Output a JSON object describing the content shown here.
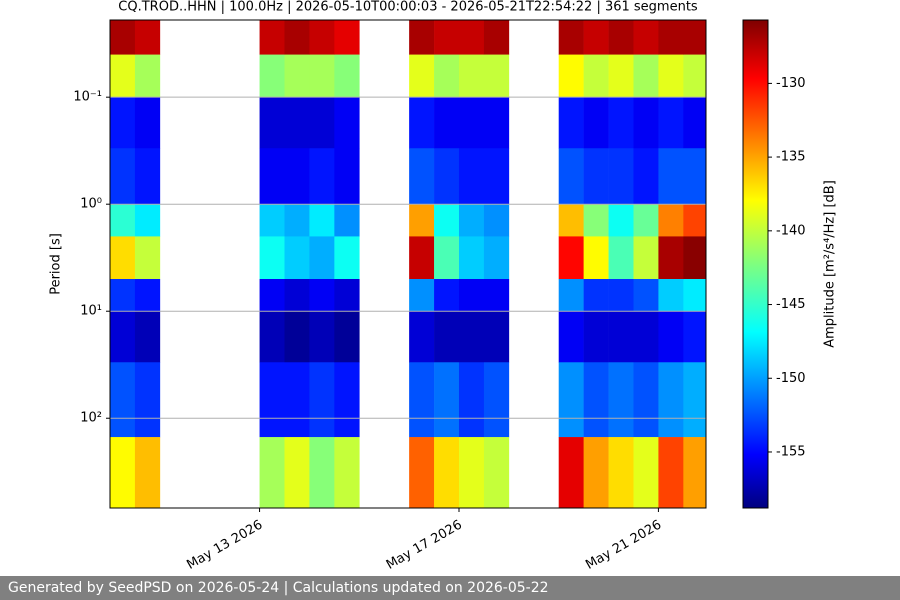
{
  "chart_data": {
    "type": "spectrogram",
    "title": "CQ.TROD..HHN | 100.0Hz | 2026-05-10T00:00:03 - 2026-05-21T22:54:22 | 361 segments",
    "y_label": "Period [s]",
    "colorbar_label": "Amplitude [m²/s⁴/Hz] [dB]",
    "yscale": "log",
    "grid": true,
    "colormap": "jet",
    "xlim": [
      "2026-05-10T00:00:03",
      "2026-05-21T22:54:22"
    ],
    "xticks": [
      {
        "value": "2026-05-13T00:00",
        "label": "May 13 2026"
      },
      {
        "value": "2026-05-17T00:00",
        "label": "May 17 2026"
      },
      {
        "value": "2026-05-21T00:00",
        "label": "May 21 2026"
      }
    ],
    "ylim": [
      690,
      0.019
    ],
    "yticks": [
      {
        "value": 0.1,
        "label": "10⁻¹"
      },
      {
        "value": 1,
        "label": "10⁰"
      },
      {
        "value": 10,
        "label": "10¹"
      },
      {
        "value": 100,
        "label": "10²"
      }
    ],
    "clim": [
      -158.8,
      -125.7
    ],
    "cticks": [
      -130,
      -135,
      -140,
      -145,
      -150,
      -155
    ],
    "x": [
      "2026-05-10T00:00",
      "2026-05-10T12:00",
      "2026-05-11T00:00",
      "2026-05-11T12:00",
      "2026-05-12T00:00",
      "2026-05-12T12:00",
      "2026-05-13T00:00",
      "2026-05-13T12:00",
      "2026-05-14T00:00",
      "2026-05-14T12:00",
      "2026-05-15T00:00",
      "2026-05-15T12:00",
      "2026-05-16T00:00",
      "2026-05-16T12:00",
      "2026-05-17T00:00",
      "2026-05-17T12:00",
      "2026-05-18T00:00",
      "2026-05-18T12:00",
      "2026-05-19T00:00",
      "2026-05-19T12:00",
      "2026-05-20T00:00",
      "2026-05-20T12:00",
      "2026-05-21T00:00",
      "2026-05-21T12:00"
    ],
    "period_edges": [
      0.019,
      0.04,
      0.1,
      0.3,
      1,
      2,
      5,
      10,
      30,
      150,
      690
    ],
    "z": [
      [
        -127,
        -139,
        -154,
        -153,
        -145,
        -137,
        -153,
        -156,
        -152,
        -138
      ],
      [
        -128,
        -141,
        -155,
        -154,
        -147,
        -140,
        -154,
        -157,
        -153,
        -136
      ],
      null,
      null,
      null,
      null,
      [
        -128,
        -142,
        -156,
        -155,
        -148,
        -146,
        -155,
        -157,
        -154,
        -141
      ],
      [
        -127,
        -141,
        -156,
        -155,
        -149,
        -148,
        -156,
        -158,
        -154,
        -139
      ],
      [
        -128,
        -141,
        -156,
        -154,
        -147,
        -149,
        -155,
        -157,
        -153,
        -142
      ],
      [
        -129,
        -142,
        -155,
        -155,
        -150,
        -146,
        -156,
        -158,
        -154,
        -140
      ],
      null,
      null,
      [
        -127,
        -139,
        -154,
        -152,
        -135,
        -128,
        -150,
        -156,
        -152,
        -133
      ],
      [
        -128,
        -141,
        -155,
        -153,
        -146,
        -144,
        -154,
        -157,
        -151,
        -137
      ],
      [
        -128,
        -140,
        -155,
        -154,
        -149,
        -148,
        -155,
        -157,
        -153,
        -139
      ],
      [
        -127,
        -140,
        -155,
        -154,
        -150,
        -149,
        -155,
        -157,
        -152,
        -140
      ],
      null,
      null,
      [
        -127,
        -138,
        -154,
        -152,
        -136,
        -130,
        -150,
        -155,
        -150,
        -129
      ],
      [
        -128,
        -140,
        -155,
        -153,
        -142,
        -138,
        -153,
        -156,
        -152,
        -135
      ],
      [
        -127,
        -139,
        -154,
        -153,
        -146,
        -144,
        -153,
        -156,
        -151,
        -137
      ],
      [
        -128,
        -141,
        -155,
        -154,
        -143,
        -140,
        -152,
        -156,
        -152,
        -139
      ],
      [
        -127,
        -139,
        -154,
        -152,
        -134,
        -127,
        -148,
        -155,
        -150,
        -132
      ],
      [
        -127,
        -140,
        -155,
        -152,
        -132,
        -126,
        -147,
        -154,
        -149,
        -135
      ]
    ]
  },
  "footer": "Generated by SeedPSD on 2026-05-24 | Calculations updated on 2026-05-22"
}
